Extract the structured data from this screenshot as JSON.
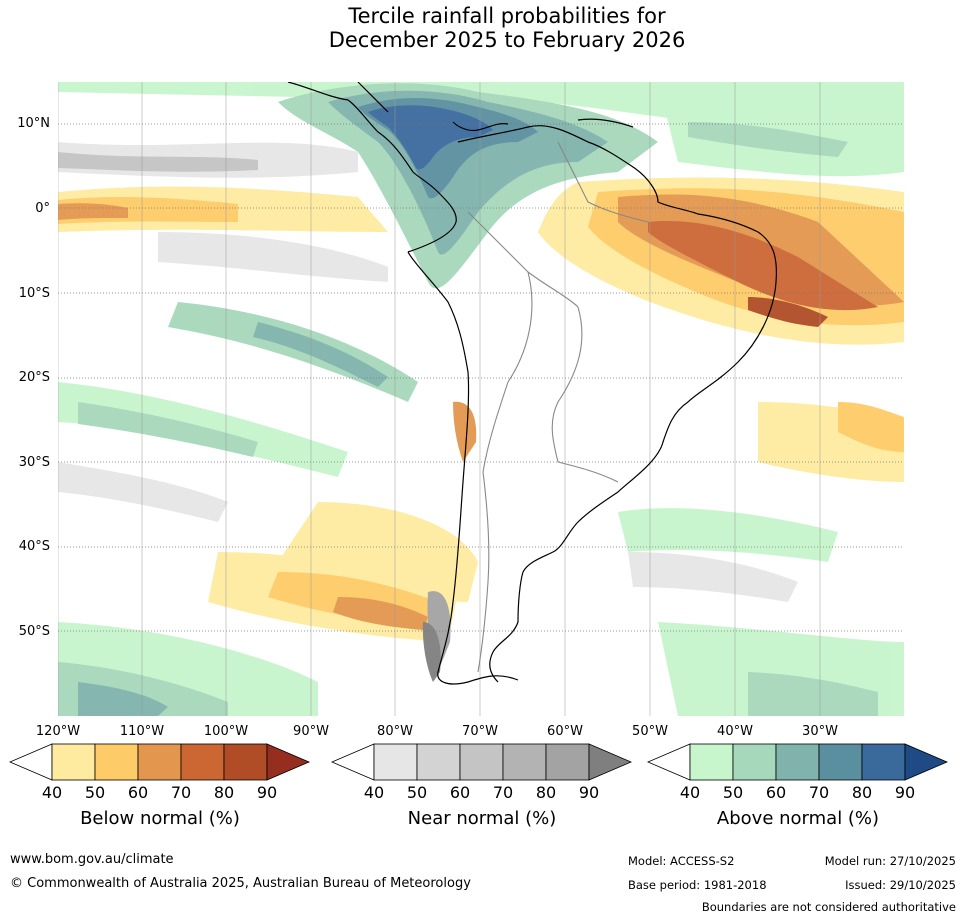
{
  "title_line1": "Tercile rainfall probabilities for",
  "title_line2": "December 2025 to February 2026",
  "lat_labels": [
    "10°N",
    "0°",
    "10°S",
    "20°S",
    "30°S",
    "40°S",
    "50°S"
  ],
  "lon_labels": [
    "120°W",
    "110°W",
    "100°W",
    "90°W",
    "80°W",
    "70°W",
    "60°W",
    "50°W",
    "40°W",
    "30°W"
  ],
  "colorbars": {
    "below": {
      "label": "Below normal (%)",
      "ticks": [
        "40",
        "50",
        "60",
        "70",
        "80",
        "90"
      ],
      "colors": [
        "#ffffff",
        "#feeba0",
        "#fdcb67",
        "#e3964d",
        "#cc6633",
        "#b04c26",
        "#952e1e"
      ]
    },
    "near": {
      "label": "Near normal (%)",
      "ticks": [
        "40",
        "50",
        "60",
        "70",
        "80",
        "90"
      ],
      "colors": [
        "#ffffff",
        "#e6e6e6",
        "#d3d3d3",
        "#c4c4c4",
        "#b3b3b3",
        "#a3a3a3",
        "#7f7f7f"
      ]
    },
    "above": {
      "label": "Above normal (%)",
      "ticks": [
        "40",
        "50",
        "60",
        "70",
        "80",
        "90"
      ],
      "colors": [
        "#ffffff",
        "#c7f5cc",
        "#a6d8bb",
        "#7fb3ab",
        "#5a8fa0",
        "#3a6a9c",
        "#1e4a85"
      ]
    }
  },
  "footer": {
    "url": "www.bom.gov.au/climate",
    "copyright": "© Commonwealth of Australia 2025, Australian Bureau of Meteorology",
    "model": "Model: ACCESS-S2",
    "model_run": "Model run: 27/10/2025",
    "base_period": "Base period: 1981-2018",
    "issued": "Issued: 29/10/2025",
    "disclaimer": "Boundaries are not considered authoritative"
  }
}
